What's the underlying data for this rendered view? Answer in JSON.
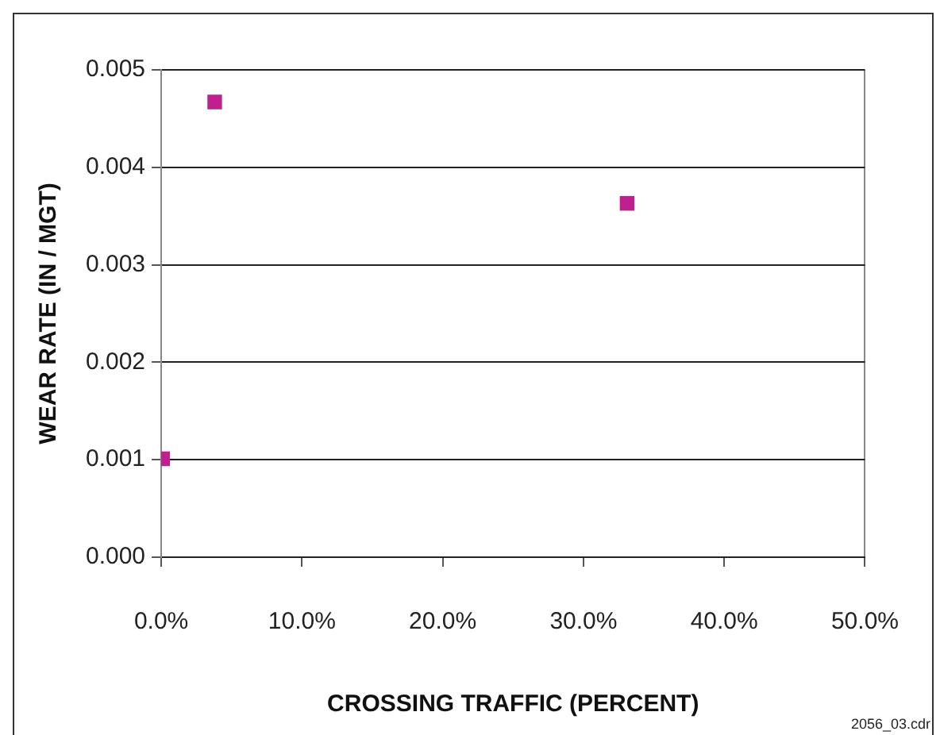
{
  "chart_data": {
    "type": "scatter",
    "xlabel": "CROSSING TRAFFIC (PERCENT)",
    "ylabel": "WEAR RATE (IN / MGT)",
    "x": [
      0.1,
      3.8,
      33.1
    ],
    "series": [
      {
        "color": "#c0208f",
        "values": [
          0.00101,
          0.00467,
          0.00363
        ]
      }
    ],
    "xlim": [
      0,
      50
    ],
    "xticks": [
      {
        "value": 0,
        "label": "0.0%"
      },
      {
        "value": 10,
        "label": "10.0%"
      },
      {
        "value": 20,
        "label": "20.0%"
      },
      {
        "value": 30,
        "label": "30.0%"
      },
      {
        "value": 40,
        "label": "40.0%"
      },
      {
        "value": 50,
        "label": "50.0%"
      }
    ],
    "ylim": [
      0,
      0.005
    ],
    "yticks": [
      {
        "value": 0,
        "label": "0.000"
      },
      {
        "value": 0.001,
        "label": "0.001"
      },
      {
        "value": 0.002,
        "label": "0.002"
      },
      {
        "value": 0.003,
        "label": "0.003"
      },
      {
        "value": 0.004,
        "label": "0.004"
      },
      {
        "value": 0.005,
        "label": "0.005"
      }
    ],
    "grid": "y",
    "marker": "square",
    "legend": false,
    "annotations": [
      "2056_03.cdr"
    ]
  }
}
